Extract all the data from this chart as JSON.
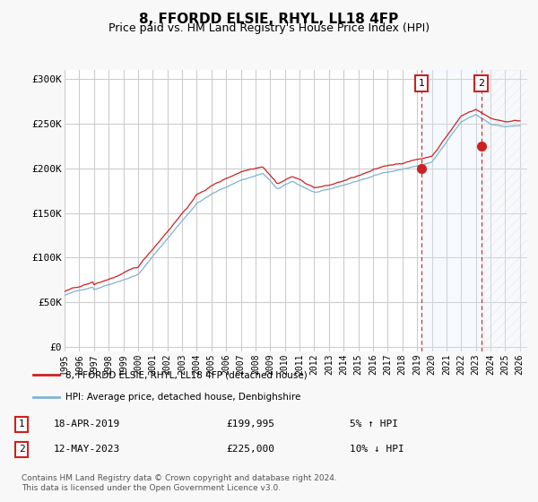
{
  "title": "8, FFORDD ELSIE, RHYL, LL18 4FP",
  "subtitle": "Price paid vs. HM Land Registry's House Price Index (HPI)",
  "title_fontsize": 11,
  "subtitle_fontsize": 9,
  "ylabel_ticks": [
    "£0",
    "£50K",
    "£100K",
    "£150K",
    "£200K",
    "£250K",
    "£300K"
  ],
  "ytick_values": [
    0,
    50000,
    100000,
    150000,
    200000,
    250000,
    300000
  ],
  "ylim": [
    -5000,
    310000
  ],
  "xlim_start": 1995.0,
  "xlim_end": 2026.5,
  "chart_bg": "#ffffff",
  "fig_bg": "#f8f8f8",
  "grid_color": "#cccccc",
  "hpi_color": "#7fb3d3",
  "price_color": "#cc2222",
  "marker1_x": 2019.29,
  "marker1_y": 199995,
  "marker2_x": 2023.37,
  "marker2_y": 225000,
  "shade_color": "#ddeeff",
  "legend_label1": "8, FFORDD ELSIE, RHYL, LL18 4FP (detached house)",
  "legend_label2": "HPI: Average price, detached house, Denbighshire",
  "table_row1": [
    "1",
    "18-APR-2019",
    "£199,995",
    "5% ↑ HPI"
  ],
  "table_row2": [
    "2",
    "12-MAY-2023",
    "£225,000",
    "10% ↓ HPI"
  ],
  "footer": "Contains HM Land Registry data © Crown copyright and database right 2024.\nThis data is licensed under the Open Government Licence v3.0.",
  "xtick_years": [
    1995,
    1996,
    1997,
    1998,
    1999,
    2000,
    2001,
    2002,
    2003,
    2004,
    2005,
    2006,
    2007,
    2008,
    2009,
    2010,
    2011,
    2012,
    2013,
    2014,
    2015,
    2016,
    2017,
    2018,
    2019,
    2020,
    2021,
    2022,
    2023,
    2024,
    2025,
    2026
  ]
}
